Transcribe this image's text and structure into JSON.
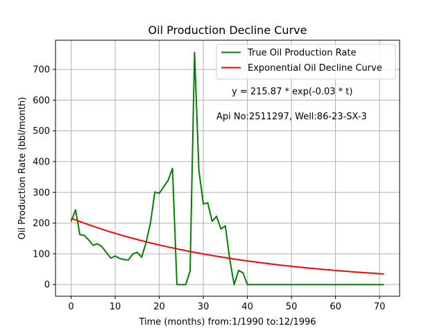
{
  "chart_data": {
    "type": "line",
    "title": "Oil Production Decline Curve",
    "xlabel": "Time (months) from:1/1990 to:12/1996",
    "ylabel": "Oil Production Rate (bbl/month)",
    "xlim": [
      -3.55,
      74.55
    ],
    "ylim": [
      -38,
      795
    ],
    "xticks": [
      0,
      10,
      20,
      30,
      40,
      50,
      60,
      70
    ],
    "yticks": [
      0,
      100,
      200,
      300,
      400,
      500,
      600,
      700
    ],
    "grid": true,
    "legend_position": "top-right",
    "annotations": [
      "y = 215.87 * exp(-0.03 * t)",
      "Api No:2511297, Well:86-23-SX-3"
    ],
    "series": [
      {
        "name": "True Oil Production Rate",
        "color": "#008000",
        "x": [
          0,
          1,
          2,
          3,
          4,
          5,
          6,
          7,
          8,
          9,
          10,
          11,
          12,
          13,
          14,
          15,
          16,
          17,
          18,
          19,
          20,
          21,
          22,
          23,
          24,
          25,
          26,
          27,
          28,
          29,
          30,
          31,
          32,
          33,
          34,
          35,
          36,
          37,
          38,
          39,
          40,
          41,
          42,
          43,
          44,
          45,
          46,
          47,
          48,
          49,
          50,
          51,
          52,
          53,
          54,
          55,
          56,
          57,
          58,
          59,
          60,
          61,
          62,
          63,
          64,
          65,
          66,
          67,
          68,
          69,
          70,
          71
        ],
        "y": [
          205,
          243,
          162,
          160,
          145,
          128,
          133,
          123,
          104,
          86,
          93,
          85,
          81,
          80,
          100,
          105,
          89,
          136,
          201,
          301,
          297,
          318,
          339,
          378,
          0,
          0,
          0,
          44,
          755,
          371,
          262,
          266,
          206,
          222,
          181,
          191,
          81,
          0,
          46,
          38,
          0,
          0,
          0,
          0,
          0,
          0,
          0,
          0,
          0,
          0,
          0,
          0,
          0,
          0,
          0,
          0,
          0,
          0,
          0,
          0,
          0,
          0,
          0,
          0,
          0,
          0,
          0,
          0,
          0,
          0,
          0,
          0
        ]
      },
      {
        "name": "Exponential Oil Decline Curve",
        "color": "#ff0000",
        "function": {
          "a": 215.87,
          "b": -0.0258
        },
        "x_range": [
          0,
          71
        ]
      }
    ]
  }
}
